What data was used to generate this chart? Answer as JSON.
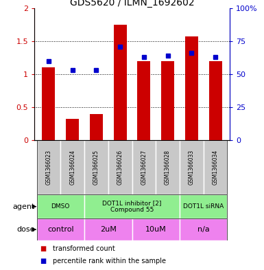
{
  "title": "GDS5620 / ILMN_1692602",
  "samples": [
    "GSM1366023",
    "GSM1366024",
    "GSM1366025",
    "GSM1366026",
    "GSM1366027",
    "GSM1366028",
    "GSM1366033",
    "GSM1366034"
  ],
  "red_values": [
    1.1,
    0.33,
    0.4,
    1.75,
    1.2,
    1.2,
    1.57,
    1.2
  ],
  "blue_values": [
    60,
    53,
    53,
    71,
    63,
    64,
    66,
    63
  ],
  "ylim_left": [
    0,
    2
  ],
  "ylim_right": [
    0,
    100
  ],
  "yticks_left": [
    0,
    0.5,
    1.0,
    1.5,
    2.0
  ],
  "yticks_right": [
    0,
    25,
    50,
    75,
    100
  ],
  "ytick_labels_left": [
    "0",
    "0.5",
    "1",
    "1.5",
    "2"
  ],
  "ytick_labels_right": [
    "0",
    "25",
    "50",
    "75",
    "100%"
  ],
  "agent_groups": [
    {
      "label": "DMSO",
      "start": 0,
      "end": 2,
      "color": "#90EE90"
    },
    {
      "label": "DOT1L inhibitor [2]\nCompound 55",
      "start": 2,
      "end": 6,
      "color": "#90EE90"
    },
    {
      "label": "DOT1L siRNA",
      "start": 6,
      "end": 8,
      "color": "#90EE90"
    }
  ],
  "dose_groups": [
    {
      "label": "control",
      "start": 0,
      "end": 2,
      "color": "#EE82EE"
    },
    {
      "label": "2uM",
      "start": 2,
      "end": 4,
      "color": "#EE82EE"
    },
    {
      "label": "10uM",
      "start": 4,
      "end": 6,
      "color": "#EE82EE"
    },
    {
      "label": "n/a",
      "start": 6,
      "end": 8,
      "color": "#EE82EE"
    }
  ],
  "bar_color": "#CC0000",
  "marker_color": "#0000CC",
  "bar_width": 0.55,
  "marker_size": 5,
  "grid_color": "black",
  "tick_color_left": "#CC0000",
  "tick_color_right": "#0000CC",
  "legend_items": [
    {
      "color": "#CC0000",
      "label": "transformed count"
    },
    {
      "color": "#0000CC",
      "label": "percentile rank within the sample"
    }
  ],
  "sample_box_color": "#C8C8C8",
  "fig_width": 3.85,
  "fig_height": 3.93,
  "dpi": 100
}
